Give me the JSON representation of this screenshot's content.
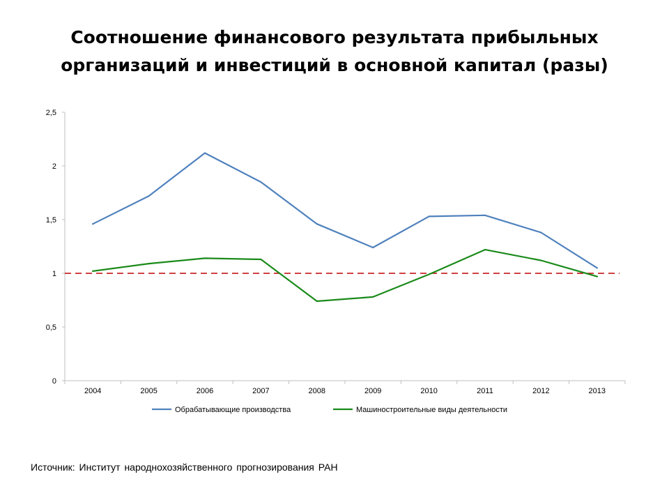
{
  "title": {
    "line1": "Соотношение финансового результата прибыльных",
    "line2": "организаций и инвестиций в основной капитал (разы)"
  },
  "source_text": "Источник: Институт народнохозяйственного прогнозирования РАН",
  "chart_data": {
    "type": "line",
    "categories": [
      "2004",
      "2005",
      "2006",
      "2007",
      "2008",
      "2009",
      "2010",
      "2011",
      "2012",
      "2013"
    ],
    "series": [
      {
        "name": "Обрабатывающие производства",
        "color": "#4F81BD",
        "values": [
          1.46,
          1.72,
          2.12,
          1.85,
          1.46,
          1.24,
          1.53,
          1.54,
          1.38,
          1.05
        ]
      },
      {
        "name": "Машиностроительные виды деятельности",
        "color": "#1A8A1A",
        "values": [
          1.02,
          1.09,
          1.14,
          1.13,
          0.74,
          0.78,
          0.99,
          1.22,
          1.12,
          0.97
        ]
      }
    ],
    "reference_line": {
      "value": 1,
      "color": "#C00000",
      "style": "dashed"
    },
    "ylim": [
      0,
      2.5
    ],
    "yticks": [
      "0",
      "0,5",
      "1",
      "1,5",
      "2",
      "2,5"
    ],
    "ytick_values": [
      0,
      0.5,
      1,
      1.5,
      2,
      2.5
    ],
    "grid": false,
    "legend_position": "bottom"
  }
}
